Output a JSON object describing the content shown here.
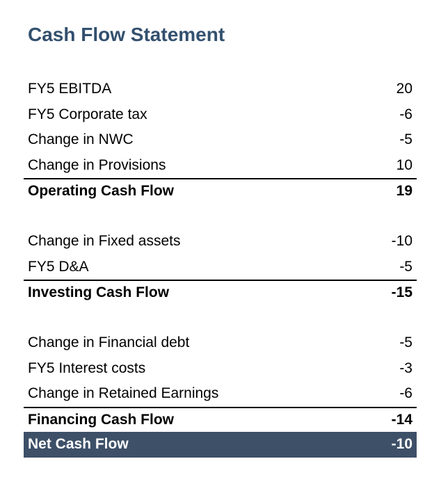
{
  "title": "Cash Flow Statement",
  "operating": {
    "items": [
      {
        "label": "FY5 EBITDA",
        "value": "20"
      },
      {
        "label": "FY5 Corporate tax",
        "value": "-6"
      },
      {
        "label": "Change in NWC",
        "value": "-5"
      },
      {
        "label": "Change in Provisions",
        "value": "10"
      }
    ],
    "total": {
      "label": "Operating Cash Flow",
      "value": "19"
    }
  },
  "investing": {
    "items": [
      {
        "label": "Change in Fixed assets",
        "value": "-10"
      },
      {
        "label": "FY5 D&A",
        "value": "-5"
      }
    ],
    "total": {
      "label": "Investing Cash Flow",
      "value": "-15"
    }
  },
  "financing": {
    "items": [
      {
        "label": "Change in Financial debt",
        "value": "-5"
      },
      {
        "label": "FY5 Interest costs",
        "value": "-3"
      },
      {
        "label": "Change in Retained Earnings",
        "value": "-6"
      }
    ],
    "total": {
      "label": "Financing Cash Flow",
      "value": "-14"
    }
  },
  "net": {
    "label": "Net Cash Flow",
    "value": "-10"
  },
  "colors": {
    "title": "#33506e",
    "net_bg": "#3d5068",
    "net_text": "#ffffff"
  }
}
